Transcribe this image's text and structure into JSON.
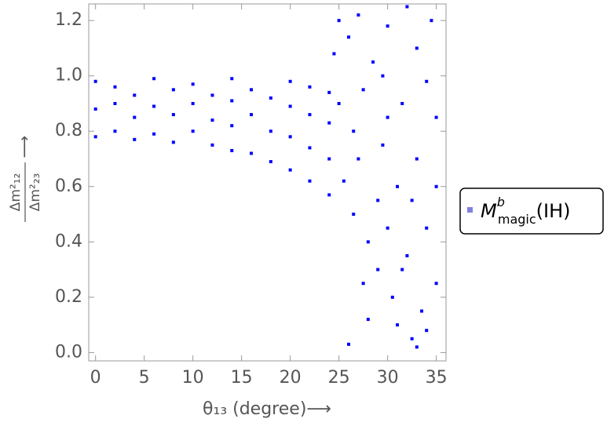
{
  "chart_data": {
    "type": "scatter",
    "xlabel": "θ₁₃ (degree)⟶",
    "ylabel": {
      "numerator": "Δm²₁₂",
      "denominator": "Δm²₂₃",
      "arrow": "⟶"
    },
    "xlim": [
      -0.7,
      36
    ],
    "ylim": [
      -0.03,
      1.26
    ],
    "xticks": [
      0,
      5,
      10,
      15,
      20,
      25,
      30,
      35
    ],
    "yticks": [
      {
        "value": 0,
        "label": "0.0"
      },
      0.2,
      0.4,
      0.6,
      0.8,
      {
        "value": 1,
        "label": "1.0"
      },
      1.2
    ],
    "legend": "right",
    "series": [
      {
        "name": "M",
        "name_sup": "b",
        "name_sub": "magic",
        "name_suffix": "(IH)",
        "color": "#0000ff",
        "legend_color": "#8080e0",
        "x": [
          0,
          0,
          0,
          2,
          2,
          2,
          4,
          4,
          4,
          6,
          6,
          6,
          8,
          8,
          8,
          10,
          10,
          10,
          12,
          12,
          12,
          14,
          14,
          14,
          14,
          16,
          16,
          16,
          18,
          18,
          18,
          20,
          20,
          20,
          20,
          22,
          22,
          22,
          22,
          24,
          24,
          24,
          24,
          24.5,
          25,
          26,
          26.5,
          27,
          27.5,
          28,
          28.5,
          29,
          29.5,
          30,
          30.5,
          31,
          31,
          31.5,
          32,
          32,
          32.5,
          33,
          33,
          33.5,
          34,
          34,
          34.5,
          35,
          35,
          35,
          25.5,
          26,
          27,
          28,
          29,
          30,
          30,
          31.5,
          33,
          25,
          26.5,
          27.5,
          29.5,
          32.5,
          34
        ],
        "values": [
          0.78,
          0.88,
          0.98,
          0.8,
          0.9,
          0.96,
          0.77,
          0.85,
          0.93,
          0.79,
          0.89,
          0.99,
          0.76,
          0.86,
          0.95,
          0.8,
          0.9,
          0.97,
          0.75,
          0.84,
          0.93,
          0.73,
          0.82,
          0.91,
          0.99,
          0.72,
          0.86,
          0.95,
          0.69,
          0.8,
          0.92,
          0.66,
          0.78,
          0.89,
          0.98,
          0.62,
          0.74,
          0.86,
          0.96,
          0.57,
          0.7,
          0.83,
          0.94,
          1.08,
          1.2,
          1.14,
          0.5,
          1.22,
          0.95,
          0.4,
          1.05,
          0.3,
          0.75,
          1.18,
          0.2,
          0.6,
          0.1,
          0.9,
          1.25,
          0.35,
          0.05,
          0.7,
          1.1,
          0.15,
          0.45,
          0.98,
          1.2,
          0.6,
          0.25,
          0.85,
          0.62,
          0.03,
          0.7,
          0.12,
          0.55,
          0.85,
          0.45,
          0.3,
          0.02,
          0.9,
          0.8,
          0.25,
          1.0,
          0.55,
          0.08
        ]
      }
    ]
  }
}
